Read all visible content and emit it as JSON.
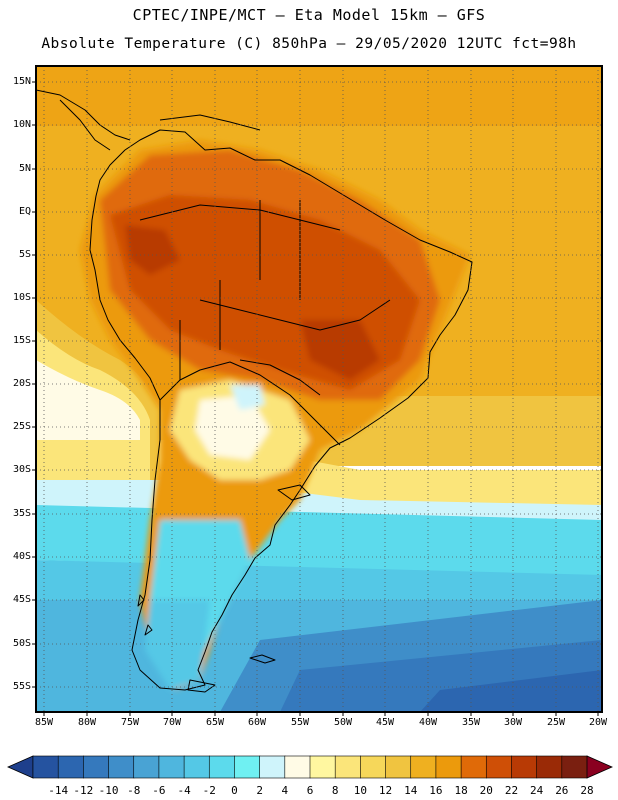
{
  "header": {
    "line1": "CPTEC/INPE/MCT –  Eta Model 15km – GFS",
    "line2": "Absolute Temperature (C) 850hPa – 29/05/2020 12UTC fct=98h"
  },
  "map": {
    "region": "South America",
    "variable": "Absolute Temperature (C) at 850hPa",
    "lat_labels": [
      "15N",
      "10N",
      "5N",
      "EQ",
      "5S",
      "10S",
      "15S",
      "20S",
      "25S",
      "30S",
      "35S",
      "40S",
      "45S",
      "50S",
      "55S"
    ],
    "lon_labels": [
      "85W",
      "80W",
      "75W",
      "70W",
      "65W",
      "60W",
      "55W",
      "50W",
      "45W",
      "40W",
      "35W",
      "30W",
      "25W",
      "20W"
    ],
    "gridlines": "dotted"
  },
  "colorbar": {
    "labels": [
      "-14",
      "-12",
      "-10",
      "-8",
      "-6",
      "-4",
      "-2",
      "0",
      "2",
      "4",
      "6",
      "8",
      "10",
      "12",
      "14",
      "16",
      "18",
      "20",
      "22",
      "24",
      "26",
      "28"
    ],
    "colors": [
      "#1e3f8c",
      "#2553a0",
      "#2c66b0",
      "#3579bd",
      "#3f8ec9",
      "#49a3d4",
      "#4fb6de",
      "#54c8e6",
      "#5cdaec",
      "#6ff0f2",
      "#cff4fb",
      "#fffbe6",
      "#fff7a0",
      "#fbe57a",
      "#f6d75a",
      "#f0c440",
      "#efb020",
      "#ec9a0c",
      "#e06a08",
      "#cf4f06",
      "#b83a05",
      "#9a2a06",
      "#7a1f10",
      "#8a0020"
    ]
  }
}
